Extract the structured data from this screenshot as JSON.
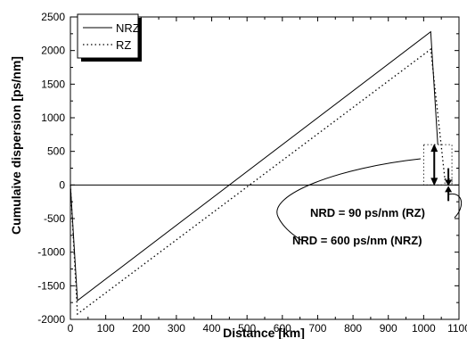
{
  "chart_data": {
    "type": "line",
    "xlabel": "Distance [km]",
    "ylabel": "Cumulaive dispersion [ps/nm]",
    "xlim": [
      0,
      1100
    ],
    "ylim": [
      -2000,
      2500
    ],
    "xticks": [
      0,
      100,
      200,
      300,
      400,
      500,
      600,
      700,
      800,
      900,
      1000,
      1100
    ],
    "yticks": [
      -2000,
      -1500,
      -1000,
      -500,
      0,
      500,
      1000,
      1500,
      2000,
      2500
    ],
    "grid": false,
    "legend_position": "top-left",
    "series": [
      {
        "name": "NRZ",
        "style": "solid",
        "x": [
          0,
          20,
          1020,
          1040
        ],
        "y": [
          0,
          -1720,
          2280,
          600
        ]
      },
      {
        "name": "RZ",
        "style": "dotted",
        "x": [
          0,
          20,
          1020,
          1060
        ],
        "y": [
          0,
          -1920,
          2020,
          90
        ]
      }
    ],
    "annotations": [
      {
        "text": "NRD = 90 ps/nm (RZ)"
      },
      {
        "text": "NRD = 600 ps/nm (NRZ)"
      }
    ]
  }
}
